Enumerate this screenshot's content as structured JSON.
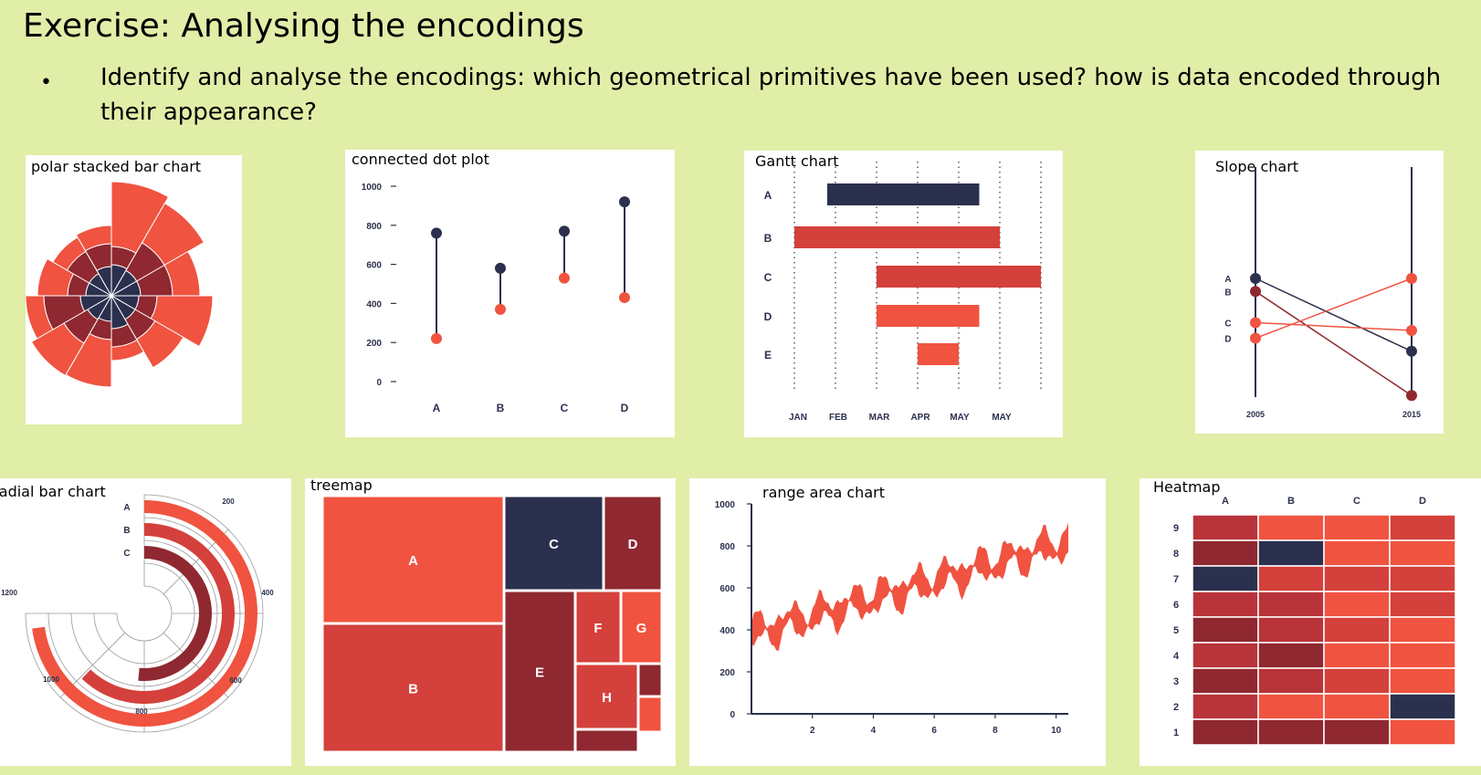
{
  "slide": {
    "title": "Exercise: Analysing the encodings",
    "bullet": "Identify and analyse the encodings: which geometrical primitives have been used? how is data encoded through their appearance?"
  },
  "colors": {
    "red": "#f05340",
    "mid": "#d4403b",
    "dark": "#8f2830",
    "navy": "#2b304e"
  },
  "chart_data": [
    {
      "id": "polar",
      "type": "bar",
      "title": "polar stacked bar chart",
      "sectors": 12,
      "series": [
        {
          "values": [
            34,
            32,
            32,
            30,
            30,
            36,
            28,
            30,
            34,
            28,
            28,
            32
          ]
        },
        {
          "values": [
            20,
            35,
            35,
            20,
            25,
            20,
            20,
            30,
            40,
            20,
            28,
            25
          ]
        },
        {
          "values": [
            71,
            50,
            30,
            61,
            36,
            15,
            52,
            41,
            20,
            33,
            18,
            20
          ]
        }
      ]
    },
    {
      "id": "dot",
      "type": "scatter",
      "title": "connected dot plot",
      "categories": [
        "A",
        "B",
        "C",
        "D"
      ],
      "high": [
        760,
        580,
        770,
        920
      ],
      "low": [
        220,
        370,
        530,
        430
      ],
      "yticks": [
        0,
        200,
        400,
        600,
        800,
        1000
      ],
      "ylim": [
        0,
        1000
      ]
    },
    {
      "id": "gantt",
      "type": "bar",
      "title": "Gantt chart",
      "rows": [
        "A",
        "B",
        "C",
        "D",
        "E"
      ],
      "months": [
        "JAN",
        "FEB",
        "MAR",
        "APR",
        "MAY",
        "MAY"
      ],
      "bars": [
        {
          "start": 0.8,
          "end": 4.5
        },
        {
          "start": 0.0,
          "end": 5.0
        },
        {
          "start": 2.0,
          "end": 6.0
        },
        {
          "start": 2.0,
          "end": 4.5
        },
        {
          "start": 3.0,
          "end": 4.0
        }
      ]
    },
    {
      "id": "slope",
      "type": "line",
      "title": "Slope chart",
      "labels": [
        "A",
        "B",
        "C",
        "D"
      ],
      "x": [
        "2005",
        "2015"
      ],
      "start": [
        4,
        3.5,
        2.3,
        1.7
      ],
      "end": [
        1.2,
        -0.5,
        2.0,
        4.0
      ]
    },
    {
      "id": "radial",
      "type": "bar",
      "title": "Radial bar chart",
      "labels": [
        "A",
        "B",
        "C"
      ],
      "values": [
        1020,
        870,
        720
      ],
      "ticks": [
        "200",
        "400",
        "600",
        "800",
        "1000",
        "1200"
      ],
      "max": 1400
    },
    {
      "id": "treemap",
      "type": "table",
      "title": "treemap",
      "labels": [
        "A",
        "B",
        "C",
        "D",
        "E",
        "F",
        "G",
        "H"
      ]
    },
    {
      "id": "range",
      "type": "area",
      "title": "range area chart",
      "xticks": [
        2,
        4,
        6,
        8,
        10
      ],
      "yticks": [
        0,
        200,
        400,
        600,
        800,
        1000
      ],
      "xlim": [
        0,
        10.4
      ],
      "ylim": [
        0,
        1000
      ]
    },
    {
      "id": "heatmap",
      "type": "heatmap",
      "title": "Heatmap",
      "cols": [
        "A",
        "B",
        "C",
        "D"
      ],
      "rows": [
        "9",
        "8",
        "7",
        "6",
        "5",
        "4",
        "3",
        "2",
        "1"
      ],
      "cells": [
        [
          2,
          0,
          0,
          1
        ],
        [
          3,
          4,
          0,
          0
        ],
        [
          4,
          1,
          1,
          1
        ],
        [
          2,
          2,
          0,
          1
        ],
        [
          3,
          2,
          1,
          0
        ],
        [
          2,
          3,
          0,
          0
        ],
        [
          3,
          2,
          1,
          0
        ],
        [
          2,
          0,
          0,
          4
        ],
        [
          3,
          3,
          3,
          0
        ]
      ]
    }
  ]
}
